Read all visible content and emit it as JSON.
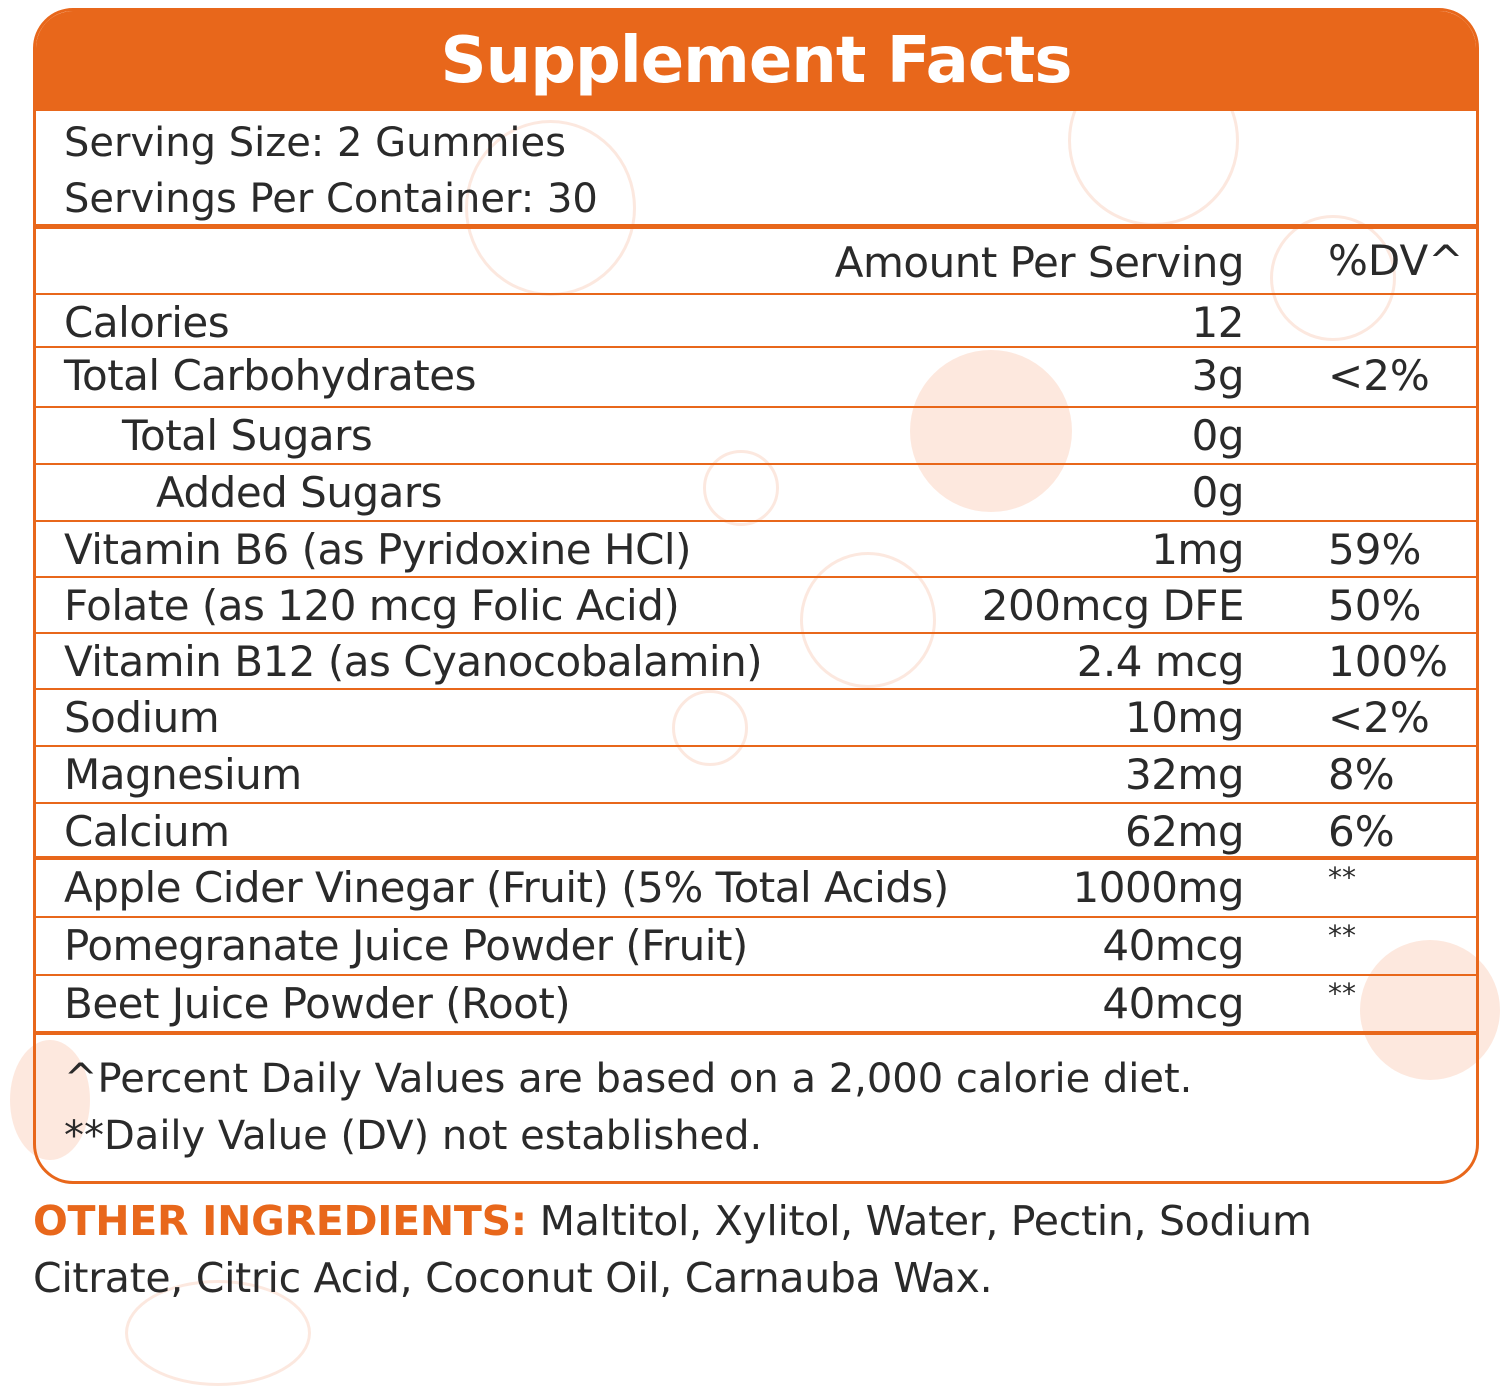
{
  "title": "Supplement Facts",
  "serving": {
    "size": "Serving Size: 2 Gummies",
    "per_container": "Servings Per Container: 30"
  },
  "columns": {
    "amount": "Amount Per Serving",
    "dv": "%DV^"
  },
  "rows": [
    {
      "name": "Calories",
      "amount": "12",
      "dv": ""
    },
    {
      "name": "Total Carbohydrates",
      "amount": "3g",
      "dv": "<2%"
    },
    {
      "name": "Total Sugars",
      "amount": "0g",
      "dv": ""
    },
    {
      "name": "Added Sugars",
      "amount": "0g",
      "dv": ""
    },
    {
      "name": "Vitamin B6 (as Pyridoxine HCl)",
      "amount": "1mg",
      "dv": "59%"
    },
    {
      "name": "Folate (as 120 mcg Folic Acid)",
      "amount": "200mcg DFE",
      "dv": "50%"
    },
    {
      "name": "Vitamin B12 (as Cyanocobalamin)",
      "amount": "2.4 mcg",
      "dv": "100%"
    },
    {
      "name": "Sodium",
      "amount": "10mg",
      "dv": "<2%"
    },
    {
      "name": "Magnesium",
      "amount": "32mg",
      "dv": "8%"
    },
    {
      "name": "Calcium",
      "amount": "62mg",
      "dv": "6%"
    },
    {
      "name": "Apple Cider Vinegar (Fruit) (5% Total Acids)",
      "amount": "1000mg",
      "dv": "**"
    },
    {
      "name": "Pomegranate Juice Powder (Fruit)",
      "amount": "40mcg",
      "dv": "**"
    },
    {
      "name": "Beet Juice Powder (Root)",
      "amount": "40mcg",
      "dv": "**"
    }
  ],
  "footnotes": [
    "^Percent Daily Values are based on a 2,000 calorie diet.",
    "**Daily Value (DV) not established."
  ],
  "other_ingredients": {
    "label": "OTHER INGREDIENTS:",
    "text": " Maltitol, Xylitol, Water, Pectin, Sodium Citrate, Citric Acid, Coconut Oil, Carnauba Wax."
  },
  "colors": {
    "accent": "#e8671b",
    "text": "#2a2a2a"
  }
}
